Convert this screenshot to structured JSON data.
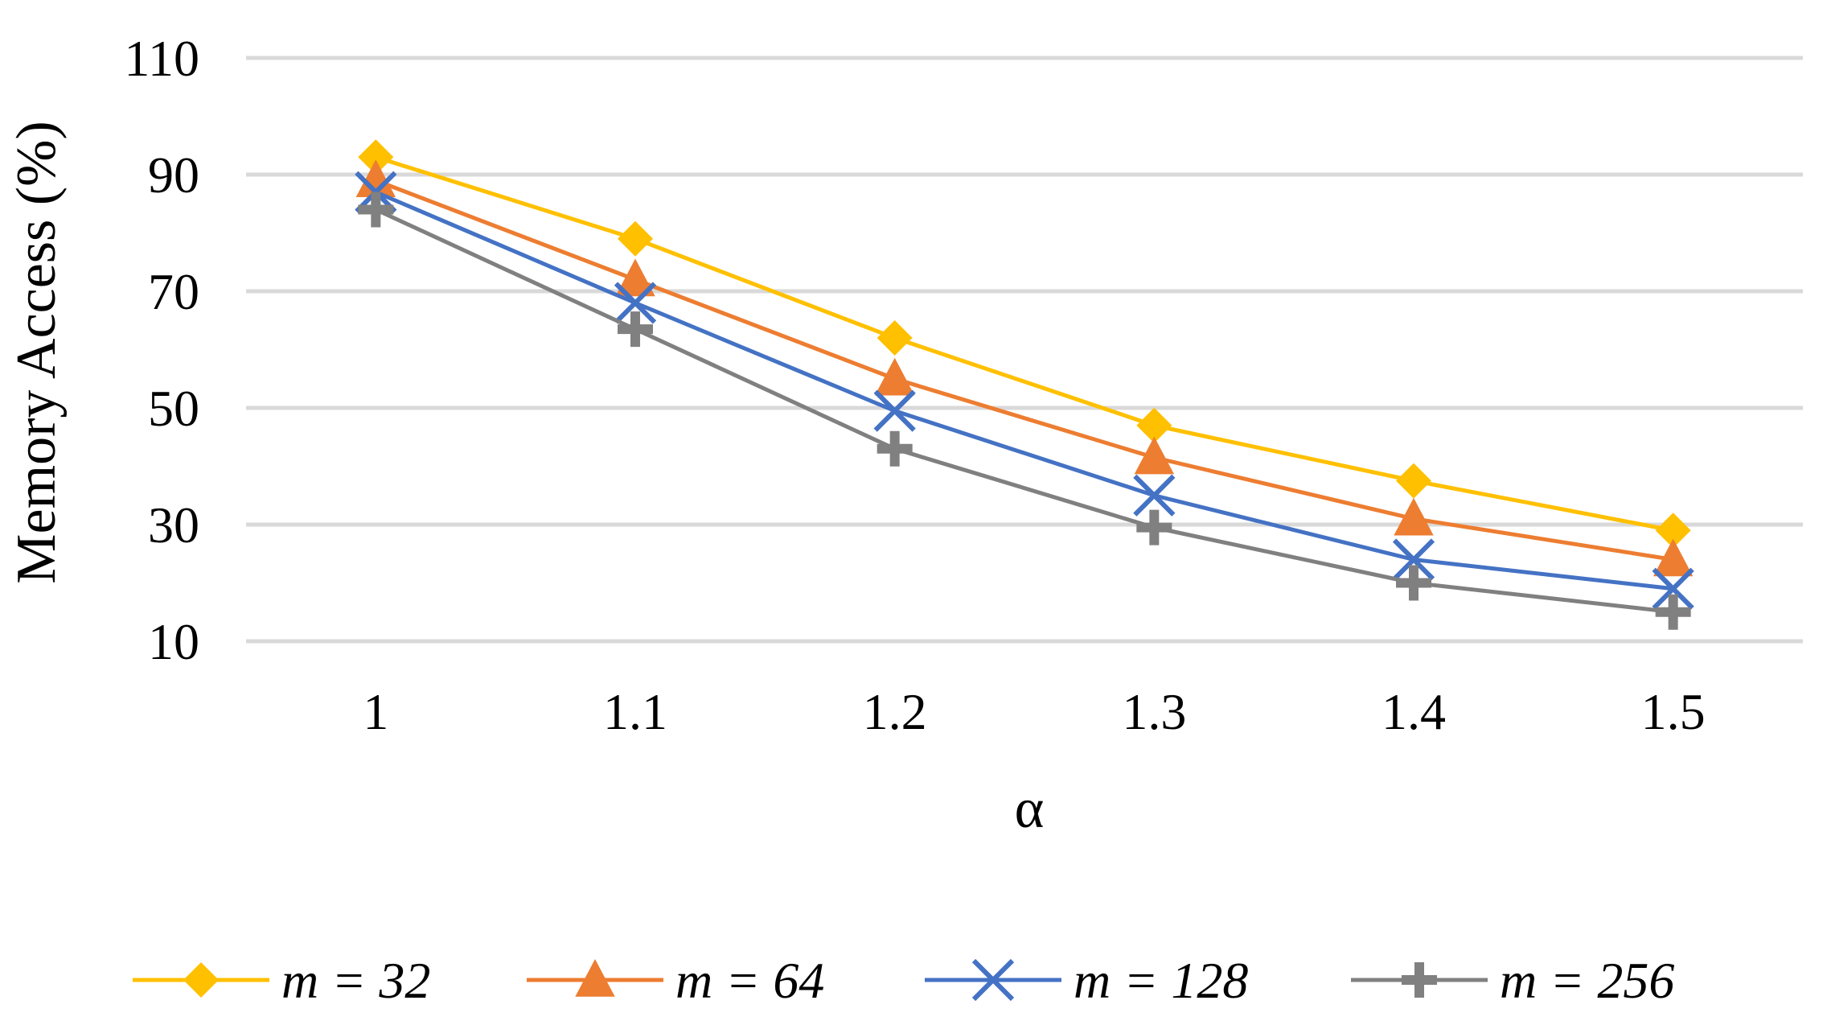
{
  "chart_data": {
    "type": "line",
    "title": "",
    "xlabel": "α",
    "ylabel": "Memory Access (%)",
    "x": [
      "1",
      "1.1",
      "1.2",
      "1.3",
      "1.4",
      "1.5"
    ],
    "ylim": [
      10,
      110
    ],
    "yticks": [
      10,
      30,
      50,
      70,
      90,
      110
    ],
    "grid": true,
    "legend_position": "bottom",
    "series": [
      {
        "name": "m = 32",
        "var": "m",
        "eq": " = 32",
        "color": "#FFC000",
        "marker": "diamond",
        "values": [
          93,
          79,
          62,
          47,
          37.5,
          29
        ]
      },
      {
        "name": "m = 64",
        "var": "m",
        "eq": " = 64",
        "color": "#ED7D31",
        "marker": "triangle",
        "values": [
          89,
          72,
          55,
          41.5,
          31,
          24
        ]
      },
      {
        "name": "m = 128",
        "var": "m",
        "eq": " = 128",
        "color": "#4472C4",
        "marker": "x",
        "values": [
          87,
          68,
          49.5,
          35,
          24,
          19
        ]
      },
      {
        "name": "m = 256",
        "var": "m",
        "eq": " = 256",
        "color": "#808080",
        "marker": "plus",
        "values": [
          84,
          63.5,
          43,
          29.5,
          20,
          15
        ]
      }
    ]
  }
}
